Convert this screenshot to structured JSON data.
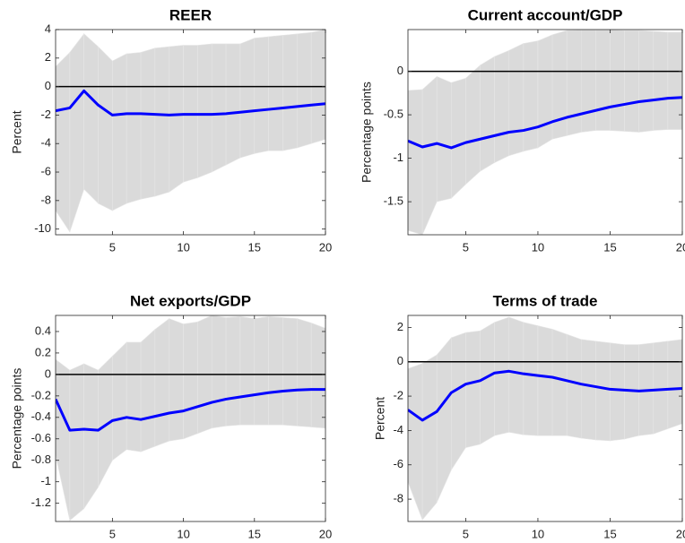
{
  "chart_data": [
    {
      "type": "line",
      "title": "REER",
      "y_label": "Percent",
      "x": [
        1,
        2,
        3,
        4,
        5,
        6,
        7,
        8,
        9,
        10,
        11,
        12,
        13,
        14,
        15,
        16,
        17,
        18,
        19,
        20
      ],
      "xlim": [
        1,
        20
      ],
      "xticks": [
        5,
        10,
        15,
        20
      ],
      "ylim": [
        -10.4,
        4
      ],
      "yticks": [
        -10,
        -8,
        -6,
        -4,
        -2,
        0,
        2,
        4
      ],
      "reference_line": {
        "value": 0,
        "color": "#000000"
      },
      "band": {
        "color": "#dadada",
        "upper": [
          1.4,
          2.4,
          3.7,
          2.8,
          1.8,
          2.3,
          2.4,
          2.7,
          2.8,
          2.9,
          2.9,
          3.0,
          3.0,
          3.0,
          3.4,
          3.5,
          3.6,
          3.7,
          3.8,
          4.0
        ],
        "lower": [
          -8.7,
          -10.2,
          -7.2,
          -8.2,
          -8.7,
          -8.2,
          -7.9,
          -7.7,
          -7.4,
          -6.7,
          -6.4,
          -6.0,
          -5.5,
          -5.0,
          -4.7,
          -4.5,
          -4.5,
          -4.3,
          -4.0,
          -3.7
        ]
      },
      "series": [
        {
          "color": "#0000ff",
          "values": [
            -1.7,
            -1.5,
            -0.3,
            -1.3,
            -2.0,
            -1.9,
            -1.9,
            -1.95,
            -2.0,
            -1.95,
            -1.95,
            -1.95,
            -1.9,
            -1.8,
            -1.7,
            -1.6,
            -1.5,
            -1.4,
            -1.3,
            -1.2
          ]
        }
      ]
    },
    {
      "type": "line",
      "title": "Current account/GDP",
      "y_label": "Percentage points",
      "x": [
        1,
        2,
        3,
        4,
        5,
        6,
        7,
        8,
        9,
        10,
        11,
        12,
        13,
        14,
        15,
        16,
        17,
        18,
        19,
        20
      ],
      "xlim": [
        1,
        20
      ],
      "xticks": [
        5,
        10,
        15,
        20
      ],
      "ylim": [
        -1.88,
        0.48
      ],
      "yticks": [
        -1.5,
        -1,
        -0.5,
        0
      ],
      "reference_line": {
        "value": 0,
        "color": "#000000"
      },
      "band": {
        "color": "#dadada",
        "upper": [
          -0.22,
          -0.21,
          -0.06,
          -0.13,
          -0.08,
          0.07,
          0.17,
          0.24,
          0.32,
          0.35,
          0.42,
          0.47,
          0.48,
          0.48,
          0.48,
          0.47,
          0.47,
          0.46,
          0.45,
          0.45
        ],
        "lower": [
          -1.83,
          -1.88,
          -1.5,
          -1.46,
          -1.3,
          -1.15,
          -1.05,
          -0.97,
          -0.92,
          -0.88,
          -0.78,
          -0.74,
          -0.7,
          -0.68,
          -0.68,
          -0.69,
          -0.7,
          -0.68,
          -0.67,
          -0.67
        ]
      },
      "series": [
        {
          "color": "#0000ff",
          "values": [
            -0.8,
            -0.87,
            -0.83,
            -0.88,
            -0.82,
            -0.78,
            -0.74,
            -0.7,
            -0.68,
            -0.64,
            -0.58,
            -0.53,
            -0.49,
            -0.45,
            -0.41,
            -0.38,
            -0.35,
            -0.33,
            -0.31,
            -0.3
          ]
        }
      ]
    },
    {
      "type": "line",
      "title": "Net exports/GDP",
      "y_label": "Percentage points",
      "x": [
        1,
        2,
        3,
        4,
        5,
        6,
        7,
        8,
        9,
        10,
        11,
        12,
        13,
        14,
        15,
        16,
        17,
        18,
        19,
        20
      ],
      "xlim": [
        1,
        20
      ],
      "xticks": [
        5,
        10,
        15,
        20
      ],
      "ylim": [
        -1.37,
        0.55
      ],
      "yticks": [
        -1.2,
        -1,
        -0.8,
        -0.6,
        -0.4,
        -0.2,
        0,
        0.2,
        0.4
      ],
      "reference_line": {
        "value": 0,
        "color": "#000000"
      },
      "band": {
        "color": "#dadada",
        "upper": [
          0.14,
          0.04,
          0.1,
          0.04,
          0.17,
          0.3,
          0.3,
          0.42,
          0.52,
          0.47,
          0.49,
          0.55,
          0.53,
          0.54,
          0.52,
          0.54,
          0.53,
          0.52,
          0.48,
          0.43
        ],
        "lower": [
          -0.75,
          -1.36,
          -1.25,
          -1.05,
          -0.8,
          -0.7,
          -0.72,
          -0.67,
          -0.62,
          -0.6,
          -0.55,
          -0.5,
          -0.48,
          -0.47,
          -0.47,
          -0.47,
          -0.47,
          -0.48,
          -0.49,
          -0.5
        ]
      },
      "series": [
        {
          "color": "#0000ff",
          "values": [
            -0.23,
            -0.52,
            -0.51,
            -0.52,
            -0.43,
            -0.4,
            -0.42,
            -0.39,
            -0.36,
            -0.34,
            -0.3,
            -0.26,
            -0.23,
            -0.21,
            -0.19,
            -0.17,
            -0.155,
            -0.145,
            -0.14,
            -0.14
          ]
        }
      ]
    },
    {
      "type": "line",
      "title": "Terms of trade",
      "y_label": "Percent",
      "x": [
        1,
        2,
        3,
        4,
        5,
        6,
        7,
        8,
        9,
        10,
        11,
        12,
        13,
        14,
        15,
        16,
        17,
        18,
        19,
        20
      ],
      "xlim": [
        1,
        20
      ],
      "xticks": [
        5,
        10,
        15,
        20
      ],
      "ylim": [
        -9.3,
        2.7
      ],
      "yticks": [
        -8,
        -6,
        -4,
        -2,
        0,
        2
      ],
      "reference_line": {
        "value": 0,
        "color": "#000000"
      },
      "band": {
        "color": "#dadada",
        "upper": [
          -0.4,
          -0.1,
          0.4,
          1.4,
          1.7,
          1.8,
          2.3,
          2.6,
          2.3,
          2.1,
          1.9,
          1.6,
          1.3,
          1.2,
          1.1,
          1.0,
          1.0,
          1.1,
          1.2,
          1.3
        ],
        "lower": [
          -7.0,
          -9.2,
          -8.2,
          -6.3,
          -5.0,
          -4.8,
          -4.3,
          -4.1,
          -4.25,
          -4.3,
          -4.3,
          -4.3,
          -4.45,
          -4.55,
          -4.6,
          -4.5,
          -4.3,
          -4.2,
          -3.9,
          -3.6
        ]
      },
      "series": [
        {
          "color": "#0000ff",
          "values": [
            -2.8,
            -3.4,
            -2.9,
            -1.8,
            -1.3,
            -1.1,
            -0.65,
            -0.55,
            -0.7,
            -0.8,
            -0.9,
            -1.1,
            -1.3,
            -1.45,
            -1.6,
            -1.65,
            -1.7,
            -1.65,
            -1.6,
            -1.55
          ]
        }
      ]
    }
  ]
}
